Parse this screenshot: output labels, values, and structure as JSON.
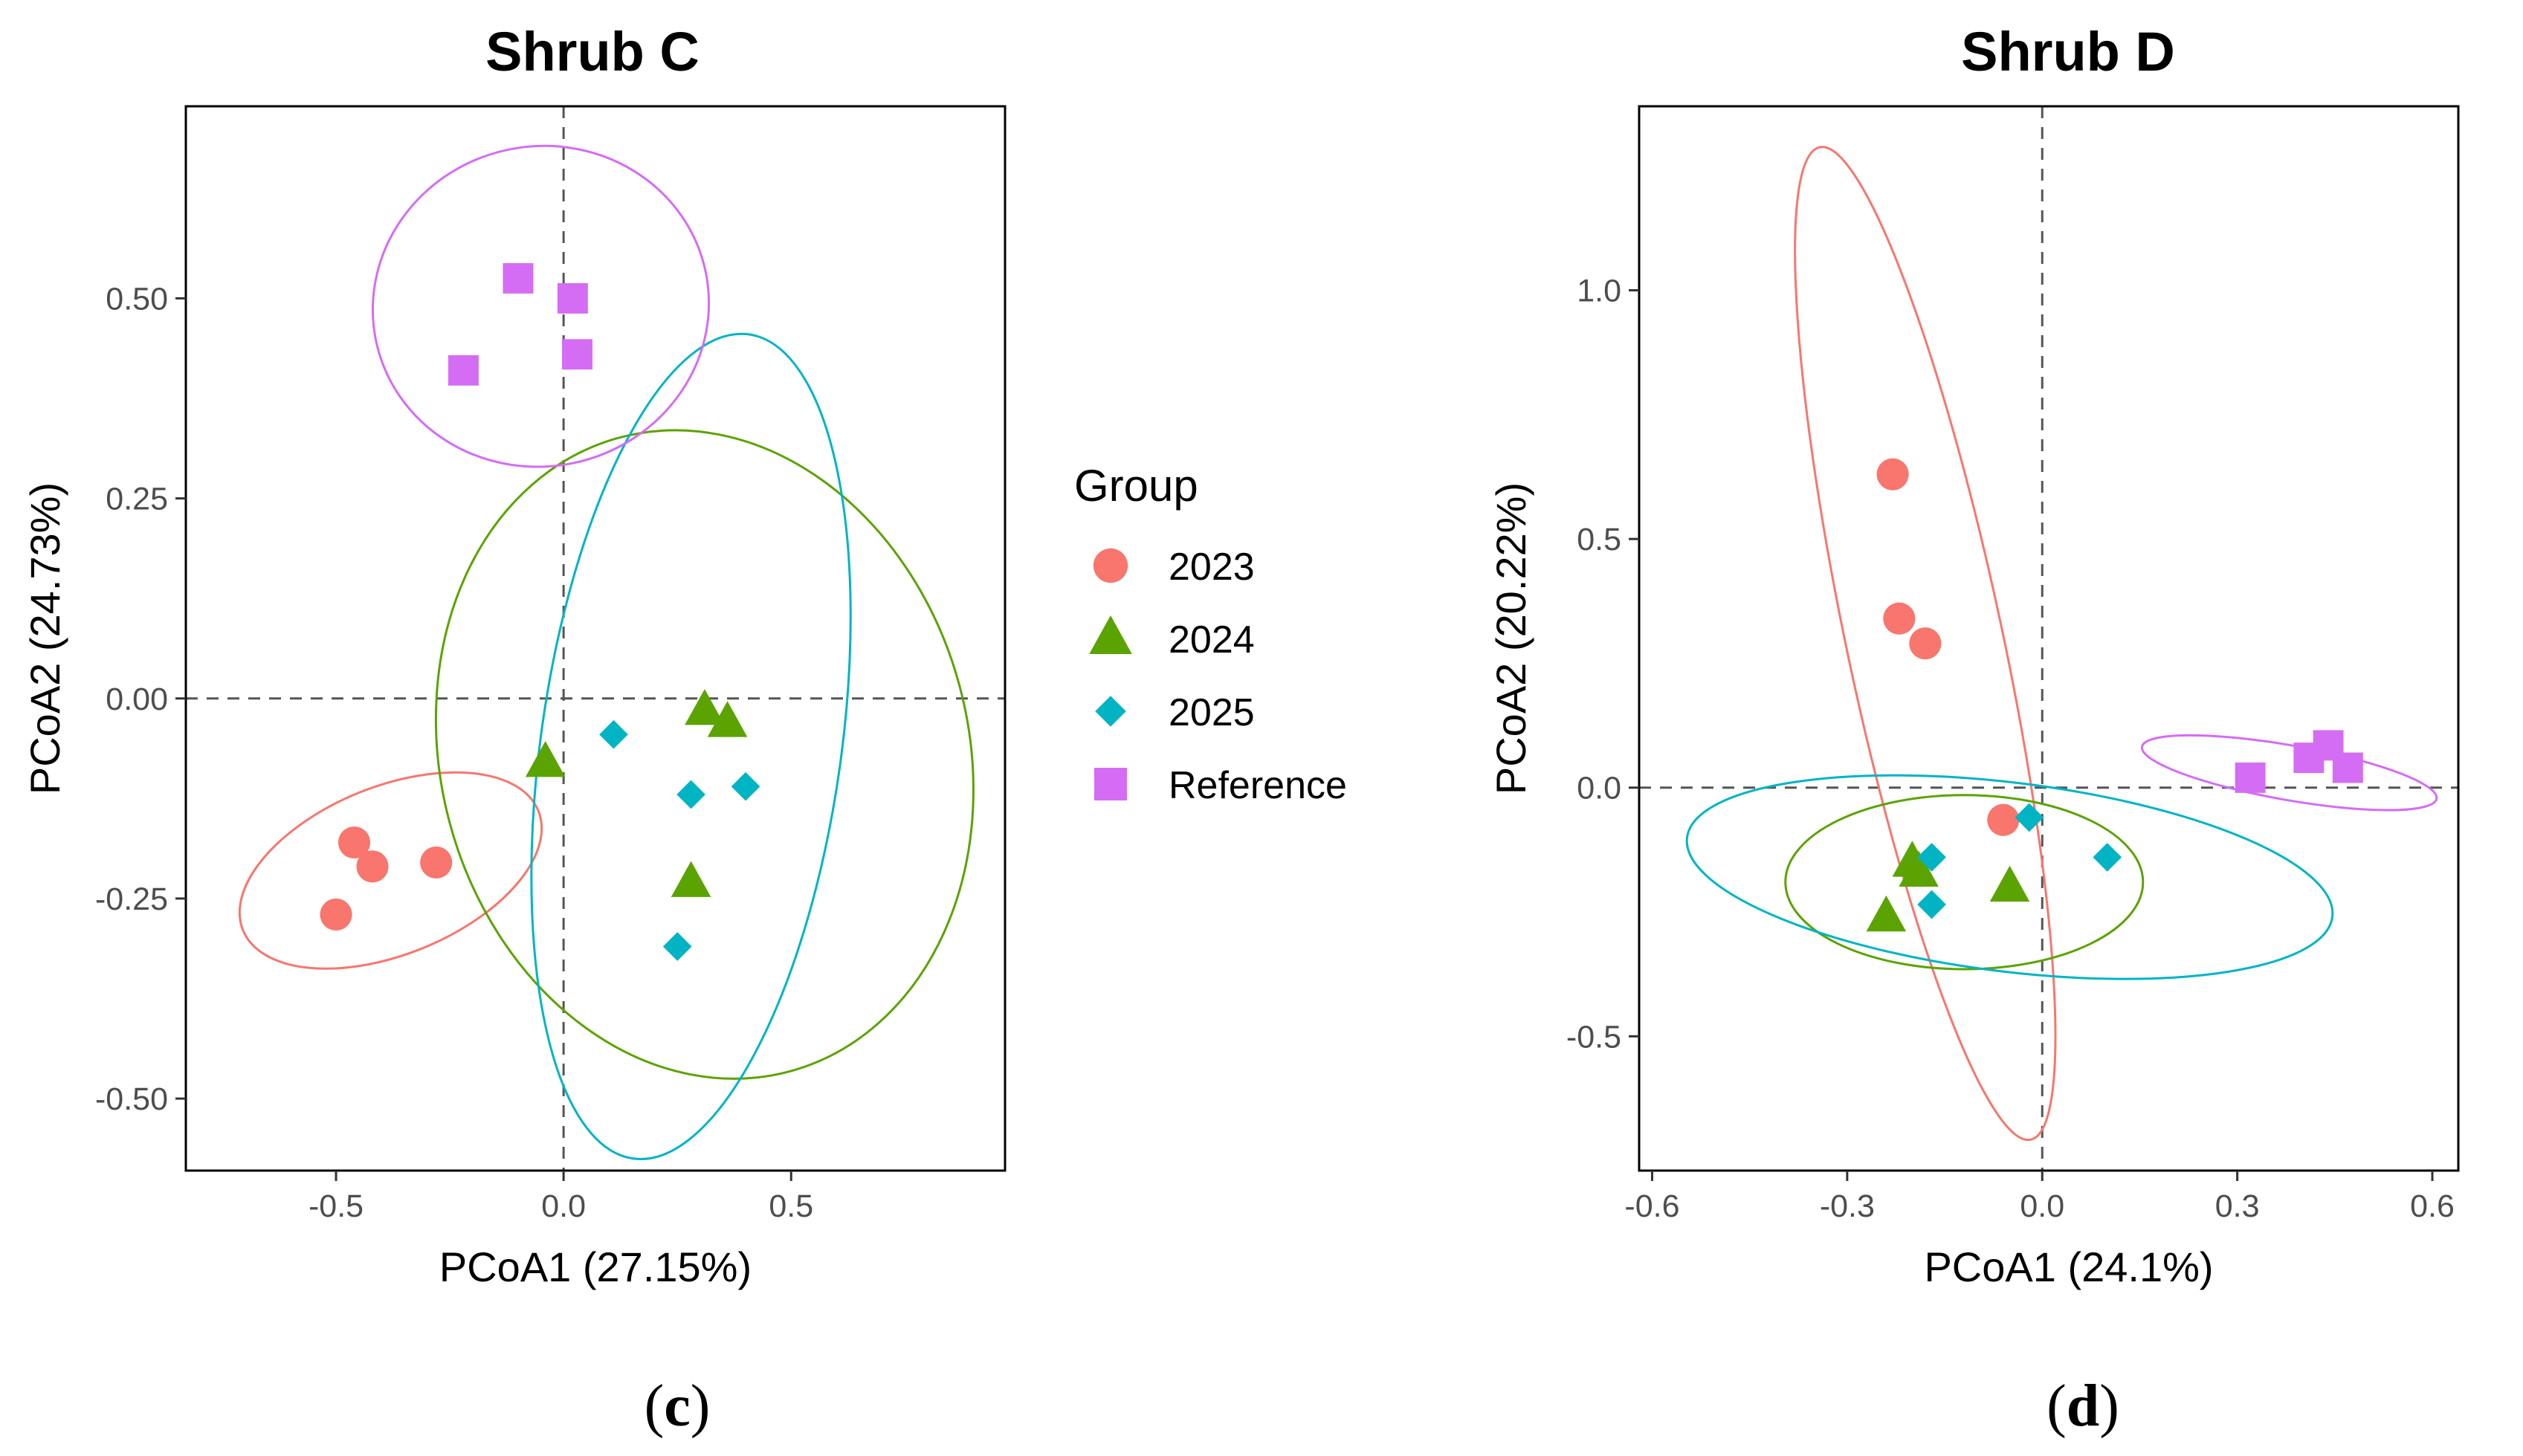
{
  "colors": {
    "2023": "#F8766D",
    "2024": "#5BA300",
    "2025": "#00B4C4",
    "Reference": "#D56CF4"
  },
  "legend": {
    "title": "Group",
    "items": [
      {
        "name": "2023",
        "shape": "circle"
      },
      {
        "name": "2024",
        "shape": "triangle"
      },
      {
        "name": "2025",
        "shape": "diamond"
      },
      {
        "name": "Reference",
        "shape": "square"
      }
    ]
  },
  "chart_data": [
    {
      "type": "scatter",
      "panel_label": "c",
      "title": "Shrub C",
      "xlabel": "PCoA1 (27.15%)",
      "ylabel": "PCoA2 (24.73%)",
      "xlim": [
        -0.83,
        0.97
      ],
      "ylim": [
        -0.59,
        0.74
      ],
      "x_ticks": [
        -0.5,
        0.0,
        0.5
      ],
      "x_tick_labels": [
        "-0.5",
        "0.0",
        "0.5"
      ],
      "y_ticks": [
        -0.5,
        -0.25,
        0.0,
        0.25,
        0.5
      ],
      "y_tick_labels": [
        "-0.50",
        "-0.25",
        "0.00",
        "0.25",
        "0.50"
      ],
      "reference_lines": {
        "x": 0,
        "y": 0
      },
      "series": [
        {
          "name": "2023",
          "x": [
            -0.46,
            -0.42,
            -0.28,
            -0.5
          ],
          "y": [
            -0.18,
            -0.21,
            -0.205,
            -0.27
          ]
        },
        {
          "name": "2024",
          "x": [
            -0.04,
            0.31,
            0.36,
            0.28
          ],
          "y": [
            -0.08,
            -0.015,
            -0.03,
            -0.23
          ]
        },
        {
          "name": "2025",
          "x": [
            0.11,
            0.28,
            0.4,
            0.25
          ],
          "y": [
            -0.045,
            -0.12,
            -0.11,
            -0.31
          ]
        },
        {
          "name": "Reference",
          "x": [
            -0.1,
            0.02,
            0.03,
            -0.22
          ],
          "y": [
            0.525,
            0.5,
            0.43,
            0.41
          ]
        }
      ],
      "ellipses": [
        {
          "group": "2023",
          "center": [
            -0.38,
            -0.215
          ],
          "semi_x": 0.35,
          "semi_y": 0.105,
          "rotation_deg": -22
        },
        {
          "group": "2024",
          "center": [
            0.31,
            -0.07
          ],
          "semi_x": 0.58,
          "semi_y": 0.41,
          "rotation_deg": -15
        },
        {
          "group": "2025",
          "center": [
            0.28,
            -0.06
          ],
          "semi_x": 0.33,
          "semi_y": 0.52,
          "rotation_deg": 8
        },
        {
          "group": "Reference",
          "center": [
            -0.05,
            0.49
          ],
          "semi_x": 0.37,
          "semi_y": 0.2,
          "rotation_deg": -12
        }
      ]
    },
    {
      "type": "scatter",
      "panel_label": "d",
      "title": "Shrub D",
      "xlabel": "PCoA1 (24.1%)",
      "ylabel": "PCoA2 (20.22%)",
      "xlim": [
        -0.62,
        0.64
      ],
      "ylim": [
        -0.77,
        1.37
      ],
      "x_ticks": [
        -0.6,
        -0.3,
        0.0,
        0.3,
        0.6
      ],
      "x_tick_labels": [
        "-0.6",
        "-0.3",
        "0.0",
        "0.3",
        "0.6"
      ],
      "y_ticks": [
        -0.5,
        0.0,
        0.5,
        1.0
      ],
      "y_tick_labels": [
        "-0.5",
        "0.0",
        "0.5",
        "1.0"
      ],
      "reference_lines": {
        "x": 0,
        "y": 0
      },
      "series": [
        {
          "name": "2023",
          "x": [
            -0.23,
            -0.22,
            -0.18,
            -0.06
          ],
          "y": [
            0.63,
            0.34,
            0.29,
            -0.065
          ]
        },
        {
          "name": "2024",
          "x": [
            -0.2,
            -0.19,
            -0.05,
            -0.24
          ],
          "y": [
            -0.15,
            -0.17,
            -0.2,
            -0.26
          ]
        },
        {
          "name": "2025",
          "x": [
            -0.17,
            -0.17,
            -0.02,
            0.1
          ],
          "y": [
            -0.14,
            -0.235,
            -0.06,
            -0.14
          ]
        },
        {
          "name": "Reference",
          "x": [
            0.32,
            0.41,
            0.44,
            0.47
          ],
          "y": [
            0.02,
            0.06,
            0.085,
            0.04
          ]
        }
      ],
      "ellipses": [
        {
          "group": "2023",
          "center": [
            -0.18,
            0.29
          ],
          "semi_x": 0.12,
          "semi_y": 1.02,
          "rotation_deg": -12
        },
        {
          "group": "2024",
          "center": [
            -0.12,
            -0.19
          ],
          "semi_x": 0.275,
          "semi_y": 0.175,
          "rotation_deg": 0
        },
        {
          "group": "2025",
          "center": [
            -0.05,
            -0.18
          ],
          "semi_x": 0.5,
          "semi_y": 0.19,
          "rotation_deg": 7
        },
        {
          "group": "Reference",
          "center": [
            0.38,
            0.03
          ],
          "semi_x": 0.23,
          "semi_y": 0.055,
          "rotation_deg": 10
        }
      ]
    }
  ]
}
